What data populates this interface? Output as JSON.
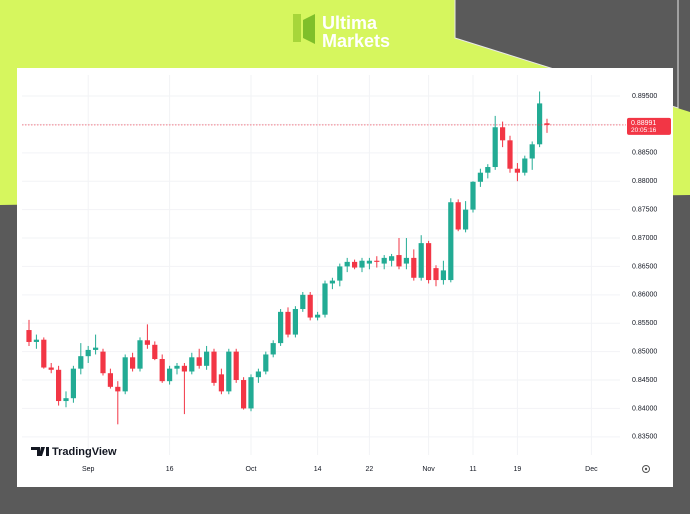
{
  "brand": {
    "line1": "Ultima",
    "line2": "Markets"
  },
  "chart_data": {
    "type": "candlestick",
    "watermark": "TradingView",
    "up_color": "#22ab94",
    "down_color": "#f23645",
    "grid": true,
    "last_price": 0.88991,
    "countdown": "20:05:16",
    "ylim": [
      0.8318,
      0.8987
    ],
    "yticks": [
      {
        "value": 0.835,
        "label": "0.83500"
      },
      {
        "value": 0.84,
        "label": "0.84000"
      },
      {
        "value": 0.845,
        "label": "0.84500"
      },
      {
        "value": 0.85,
        "label": "0.85000"
      },
      {
        "value": 0.855,
        "label": "0.85500"
      },
      {
        "value": 0.86,
        "label": "0.86000"
      },
      {
        "value": 0.865,
        "label": "0.86500"
      },
      {
        "value": 0.87,
        "label": "0.87000"
      },
      {
        "value": 0.875,
        "label": "0.87500"
      },
      {
        "value": 0.88,
        "label": "0.88000"
      },
      {
        "value": 0.885,
        "label": "0.88500"
      },
      {
        "value": 0.89,
        "label": "0.89000"
      },
      {
        "value": 0.895,
        "label": "0.89500"
      }
    ],
    "categories": [
      null,
      null,
      null,
      null,
      null,
      null,
      null,
      null,
      "Sep",
      null,
      null,
      null,
      null,
      null,
      null,
      null,
      null,
      null,
      null,
      "16",
      null,
      null,
      null,
      null,
      null,
      null,
      null,
      null,
      null,
      null,
      "Oct",
      null,
      null,
      null,
      null,
      null,
      null,
      null,
      null,
      "14",
      null,
      null,
      null,
      null,
      null,
      null,
      "22",
      null,
      null,
      null,
      null,
      null,
      null,
      null,
      "Nov",
      null,
      null,
      null,
      null,
      null,
      "11",
      null,
      null,
      null,
      null,
      null,
      "19",
      null,
      null,
      null,
      null,
      null,
      null,
      null,
      null,
      null,
      "Dec",
      null,
      null,
      null
    ],
    "open": [
      0.8538,
      0.8517,
      0.8521,
      0.8472,
      0.8468,
      0.8413,
      0.8418,
      0.847,
      0.8492,
      0.8503,
      0.85,
      0.8462,
      0.8438,
      0.843,
      0.849,
      0.847,
      0.852,
      0.8512,
      0.8487,
      0.8448,
      0.847,
      0.8475,
      0.8465,
      0.849,
      0.8475,
      0.85,
      0.846,
      0.843,
      0.85,
      0.845,
      0.84,
      0.8455,
      0.8465,
      0.8495,
      0.8515,
      0.857,
      0.853,
      0.8575,
      0.86,
      0.856,
      0.8565,
      0.862,
      0.8625,
      0.865,
      0.8658,
      0.8648,
      0.8655,
      0.866,
      0.8655,
      0.866,
      0.867,
      0.8655,
      0.8665,
      0.863,
      0.8691,
      0.8647,
      0.8626,
      0.8626,
      0.8763,
      0.8715,
      0.875,
      0.8799,
      0.8815,
      0.8825,
      0.8895,
      0.8872,
      0.8822,
      0.8815,
      0.884,
      0.8865,
      0.8902,
      null,
      null,
      null,
      null,
      null,
      null,
      null,
      null,
      null
    ],
    "high": [
      0.8556,
      0.853,
      0.8525,
      0.848,
      0.8475,
      0.843,
      0.8475,
      0.8515,
      0.851,
      0.853,
      0.8505,
      0.847,
      0.8448,
      0.8495,
      0.8498,
      0.8525,
      0.8548,
      0.8518,
      0.8495,
      0.8475,
      0.848,
      0.848,
      0.8498,
      0.8505,
      0.851,
      0.8505,
      0.847,
      0.8505,
      0.8505,
      0.8455,
      0.846,
      0.847,
      0.85,
      0.852,
      0.8575,
      0.8578,
      0.858,
      0.8605,
      0.8605,
      0.857,
      0.8625,
      0.863,
      0.8655,
      0.8665,
      0.8662,
      0.8665,
      0.8665,
      0.8668,
      0.867,
      0.8672,
      0.87,
      0.87,
      0.868,
      0.8705,
      0.8695,
      0.8652,
      0.866,
      0.877,
      0.8768,
      0.8765,
      0.88,
      0.8822,
      0.883,
      0.8915,
      0.8905,
      0.888,
      0.8832,
      0.8845,
      0.887,
      0.8958,
      0.891,
      null,
      null,
      null,
      null,
      null,
      null,
      null,
      null,
      null
    ],
    "low": [
      0.851,
      0.8505,
      0.847,
      0.8462,
      0.8405,
      0.8402,
      0.841,
      0.846,
      0.848,
      0.8495,
      0.8458,
      0.8435,
      0.8372,
      0.8425,
      0.8465,
      0.8465,
      0.8505,
      0.8485,
      0.8445,
      0.8442,
      0.846,
      0.839,
      0.846,
      0.847,
      0.8468,
      0.844,
      0.8425,
      0.8425,
      0.8445,
      0.8398,
      0.8395,
      0.8445,
      0.846,
      0.849,
      0.851,
      0.8525,
      0.8525,
      0.857,
      0.8555,
      0.8555,
      0.856,
      0.861,
      0.8615,
      0.864,
      0.8645,
      0.864,
      0.8645,
      0.8648,
      0.8645,
      0.865,
      0.8645,
      0.8645,
      0.8625,
      0.8625,
      0.862,
      0.8615,
      0.8618,
      0.8622,
      0.8712,
      0.871,
      0.8745,
      0.879,
      0.8805,
      0.882,
      0.886,
      0.8815,
      0.88,
      0.881,
      0.882,
      0.886,
      0.8885,
      null,
      null,
      null,
      null,
      null,
      null,
      null,
      null,
      null
    ],
    "close": [
      0.8517,
      0.8521,
      0.8472,
      0.8468,
      0.8413,
      0.8418,
      0.847,
      0.8492,
      0.8503,
      0.8507,
      0.8462,
      0.8438,
      0.843,
      0.849,
      0.847,
      0.852,
      0.8512,
      0.8487,
      0.8448,
      0.847,
      0.8475,
      0.8465,
      0.849,
      0.8475,
      0.85,
      0.8445,
      0.843,
      0.85,
      0.845,
      0.84,
      0.8455,
      0.8465,
      0.8495,
      0.8515,
      0.857,
      0.853,
      0.8575,
      0.86,
      0.856,
      0.8565,
      0.862,
      0.8625,
      0.865,
      0.8658,
      0.8648,
      0.866,
      0.866,
      0.8658,
      0.8665,
      0.8668,
      0.865,
      0.8665,
      0.863,
      0.8691,
      0.8626,
      0.8626,
      0.8643,
      0.8763,
      0.8715,
      0.875,
      0.8799,
      0.8815,
      0.8825,
      0.8895,
      0.8872,
      0.8822,
      0.8815,
      0.884,
      0.8865,
      0.8937,
      0.88991,
      null,
      null,
      null,
      null,
      null,
      null,
      null,
      null,
      null
    ]
  }
}
